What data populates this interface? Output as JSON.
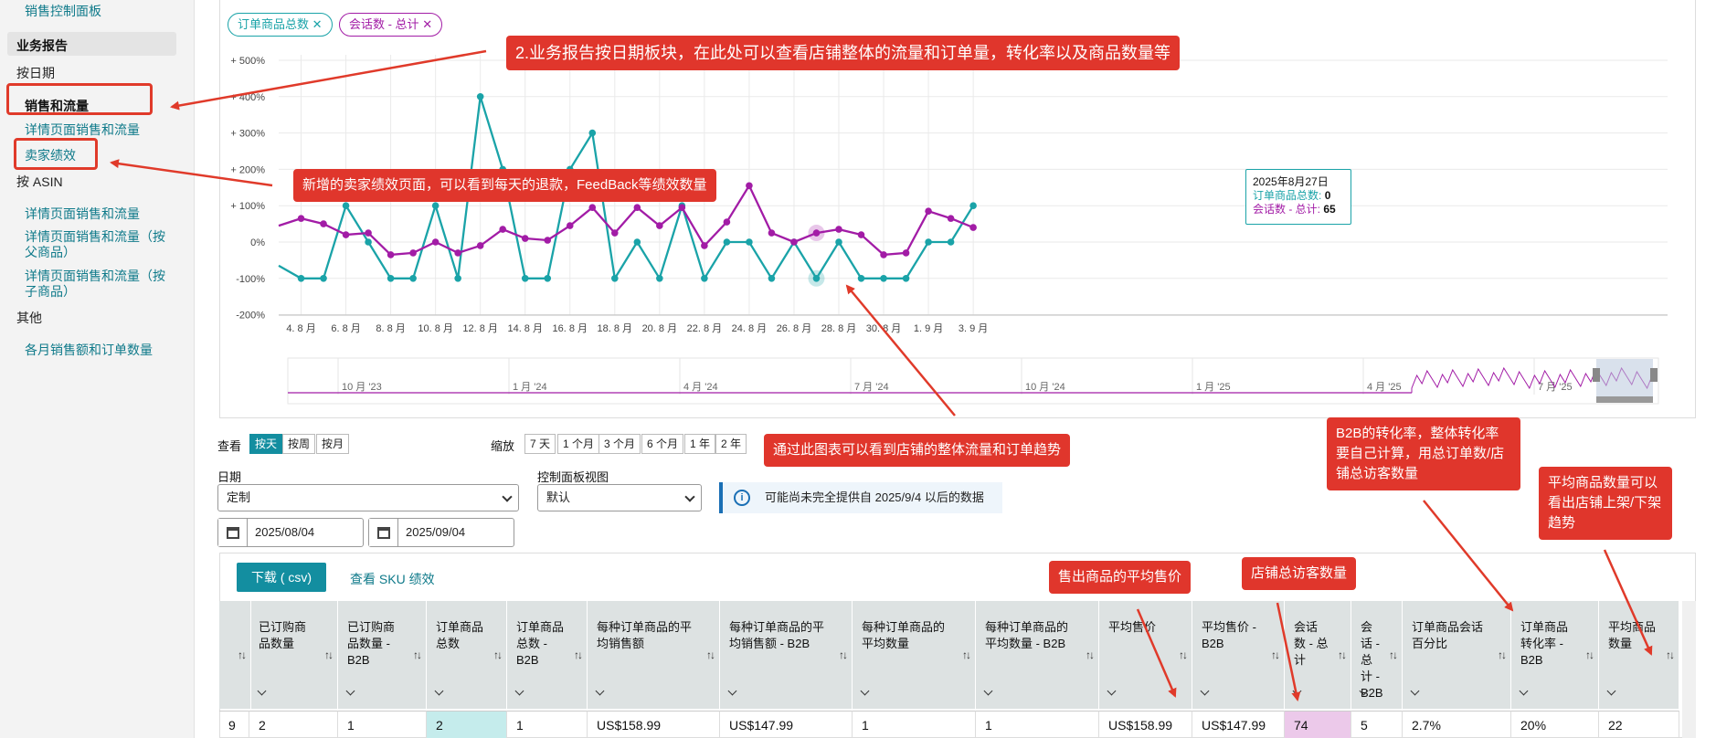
{
  "sidebar": {
    "top_link": "销售控制面板",
    "section_reports": "业务报告",
    "by_date": "按日期",
    "sales_traffic": "销售和流量",
    "detail_sales_traffic": "详情页面销售和流量",
    "seller_performance": "卖家绩效",
    "by_asin": "按 ASIN",
    "asin_detail": "详情页面销售和流量",
    "asin_detail_parent": "详情页面销售和流量（按父商品）",
    "asin_detail_child": "详情页面销售和流量（按子商品）",
    "other": "其他",
    "monthly": "各月销售额和订单数量"
  },
  "chips": [
    {
      "label": "订单商品总数",
      "color": "#1aa3a8"
    },
    {
      "label": "会话数 - 总计",
      "color": "#a21ca6"
    }
  ],
  "chart_data": {
    "type": "line",
    "categories": [
      "8/3",
      "8/4",
      "8/5",
      "8/6",
      "8/7",
      "8/8",
      "8/9",
      "8/10",
      "8/11",
      "8/12",
      "8/13",
      "8/14",
      "8/15",
      "8/16",
      "8/17",
      "8/18",
      "8/19",
      "8/20",
      "8/21",
      "8/22",
      "8/23",
      "8/24",
      "8/25",
      "8/26",
      "8/27",
      "8/28",
      "8/29",
      "8/30",
      "8/31",
      "9/1",
      "9/2",
      "9/3"
    ],
    "x_tick_labels": [
      "4. 8 月",
      "6. 8 月",
      "8. 8 月",
      "10. 8 月",
      "12. 8 月",
      "14. 8 月",
      "16. 8 月",
      "18. 8 月",
      "20. 8 月",
      "22. 8 月",
      "24. 8 月",
      "26. 8 月",
      "28. 8 月",
      "30. 8 月",
      "1. 9 月",
      "3. 9 月"
    ],
    "y_tick_labels": [
      "+ 500%",
      "+ 400%",
      "+ 300%",
      "+ 200%",
      "+ 100%",
      "0%",
      "-100%",
      "-200%"
    ],
    "ylim": [
      -200,
      500
    ],
    "series": [
      {
        "name": "订单商品总数",
        "color": "#1aa3a8",
        "values": [
          -65,
          -100,
          -100,
          100,
          0,
          -100,
          -100,
          100,
          -100,
          400,
          200,
          -100,
          -100,
          200,
          300,
          -100,
          0,
          -100,
          100,
          -100,
          0,
          0,
          -100,
          0,
          -100,
          0,
          -100,
          -100,
          -100,
          0,
          0,
          100
        ]
      },
      {
        "name": "会话数 - 总计",
        "color": "#a21ca6",
        "values": [
          45,
          65,
          50,
          20,
          25,
          -35,
          -30,
          0,
          -30,
          -10,
          35,
          10,
          5,
          45,
          95,
          25,
          95,
          45,
          95,
          -10,
          55,
          155,
          25,
          0,
          25,
          35,
          20,
          -35,
          -30,
          85,
          65,
          40
        ]
      }
    ]
  },
  "tooltip": {
    "date": "2025年8月27日",
    "line1_label": "订单商品总数:",
    "line1_value": "0",
    "line2_label": "会话数 - 总计:",
    "line2_value": "65"
  },
  "navigator": {
    "labels": [
      "10 月 '23",
      "1 月 '24",
      "4 月 '24",
      "7 月 '24",
      "10 月 '24",
      "1 月 '25",
      "4 月 '25",
      "7 月 '25"
    ]
  },
  "controls": {
    "view_label": "查看",
    "view_options": [
      "按天",
      "按周",
      "按月"
    ],
    "zoom_label": "缩放",
    "zoom_options": [
      "7 天",
      "1 个月",
      "3 个月",
      "6 个月",
      "1 年",
      "2 年"
    ],
    "date_label": "日期",
    "date_select": "定制",
    "dashboard_label": "控制面板视图",
    "dashboard_select": "默认",
    "info": "可能尚未完全提供自 2025/9/4 以后的数据",
    "start_date": "2025/08/04",
    "end_date": "2025/09/04"
  },
  "table": {
    "download": "下载 ( csv)",
    "sku_link": "查看 SKU 绩效",
    "headers": [
      "",
      "已订购商品数量",
      "已订购商品数量 - B2B",
      "订单商品总数",
      "订单商品总数 - B2B",
      "每种订单商品的平均销售额",
      "每种订单商品的平均销售额 - B2B",
      "每种订单商品的平均数量",
      "每种订单商品的平均数量 - B2B",
      "平均售价",
      "平均售价 - B2B",
      "会话数 - 总计",
      "会话 - 总计 - B2B",
      "订单商品会话百分比",
      "订单商品转化率 - B2B",
      "平均商品数量"
    ],
    "row": [
      "9",
      "2",
      "1",
      "2",
      "1",
      "US$158.99",
      "US$147.99",
      "1",
      "1",
      "US$158.99",
      "US$147.99",
      "74",
      "5",
      "2.7%",
      "20%",
      "22"
    ]
  },
  "callouts": {
    "report_by_date": "2.业务报告按日期板块，在此处可以查看店铺整体的流量和订单量，转化率以及商品数量等",
    "seller_perf": "新增的卖家绩效页面，可以看到每天的退款，FeedBack等绩效数量",
    "chart_trend": "通过此图表可以看到店铺的整体流量和订单趋势",
    "b2b_rate": "B2B的转化率，整体转化率要自己计算，用总订单数/店铺总访客数量",
    "avg_items": "平均商品数量可以看出店铺上架/下架趋势",
    "avg_price": "售出商品的平均售价",
    "visitors": "店铺总访客数量"
  }
}
